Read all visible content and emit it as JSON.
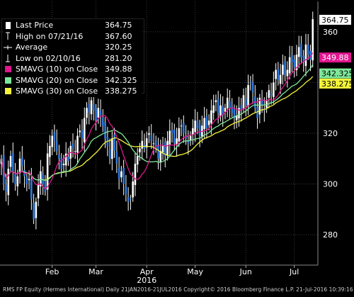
{
  "chart_data": {
    "type": "candlestick",
    "ylim": [
      268,
      372
    ],
    "y_ticks": [
      280,
      300,
      320,
      340,
      360
    ],
    "x_ticks": [
      {
        "label": "Feb",
        "x": 22
      },
      {
        "label": "Mar",
        "x": 41
      },
      {
        "label": "Apr",
        "x": 63
      },
      {
        "label": "May",
        "x": 84
      },
      {
        "label": "Jun",
        "x": 106
      },
      {
        "label": "Jul",
        "x": 127
      }
    ],
    "year_label": "2016",
    "year_x": 63,
    "x_range": [
      0,
      136
    ],
    "closes": [
      310,
      300,
      297,
      306,
      311,
      305,
      300,
      303,
      310,
      307,
      303,
      300,
      302,
      294,
      286,
      293,
      300,
      305,
      300,
      297,
      312,
      315,
      319,
      317,
      313,
      310,
      306,
      308,
      312,
      309,
      315,
      314,
      313,
      319,
      321,
      318,
      326,
      330,
      328,
      333,
      329,
      325,
      330,
      327,
      323,
      318,
      315,
      310,
      318,
      313,
      308,
      302,
      305,
      300,
      296,
      293,
      294,
      301,
      308,
      311,
      314,
      317,
      314,
      318,
      320,
      317,
      316,
      314,
      310,
      313,
      315,
      311,
      317,
      321,
      320,
      316,
      318,
      322,
      323,
      320,
      318,
      316,
      319,
      322,
      325,
      322,
      319,
      323,
      326,
      322,
      325,
      329,
      331,
      333,
      328,
      331,
      327,
      330,
      334,
      330,
      328,
      326,
      327,
      330,
      329,
      335,
      331,
      339,
      340,
      336,
      330,
      326,
      334,
      331,
      329,
      333,
      337,
      335,
      340,
      345,
      341,
      343,
      347,
      343,
      345,
      350,
      348,
      346,
      351,
      354,
      350,
      348,
      355,
      351,
      349,
      365
    ],
    "series": [
      {
        "name": "Last Price",
        "color": "#ffffff",
        "date": "",
        "value": "364.75"
      },
      {
        "name": "High on 07/21/16",
        "color": "#ffffff",
        "value": "367.60"
      },
      {
        "name": "Average",
        "color": "#ffffff",
        "value": "320.25"
      },
      {
        "name": "Low on 02/10/16",
        "color": "#ffffff",
        "value": "281.20"
      },
      {
        "name": "SMAVG (10) on Close",
        "color": "#e0168f",
        "value": "349.88"
      },
      {
        "name": "SMAVG (20) on Close",
        "color": "#7ee89a",
        "value": "342.325"
      },
      {
        "name": "SMAVG (30) on Close",
        "color": "#f3f33a",
        "value": "338.275"
      }
    ],
    "price_tags": [
      {
        "value": "364.75",
        "y": 364.75,
        "bg": "#ffffff",
        "fg": "#000000"
      },
      {
        "value": "349.88",
        "y": 349.88,
        "bg": "#e0168f",
        "fg": "#ffffff"
      },
      {
        "value": "342.325",
        "y": 343.6,
        "bg": "#7ee89a",
        "fg": "#000000"
      },
      {
        "value": "338.275",
        "y": 339.6,
        "bg": "#f3f33a",
        "fg": "#000000"
      }
    ],
    "footer": "RMS FP Equity (Hermes International)  Daily 21JAN2016-21JUL2016  Copyright© 2016 Bloomberg Finance L.P.    21-Jul-2016 10:39:16"
  }
}
